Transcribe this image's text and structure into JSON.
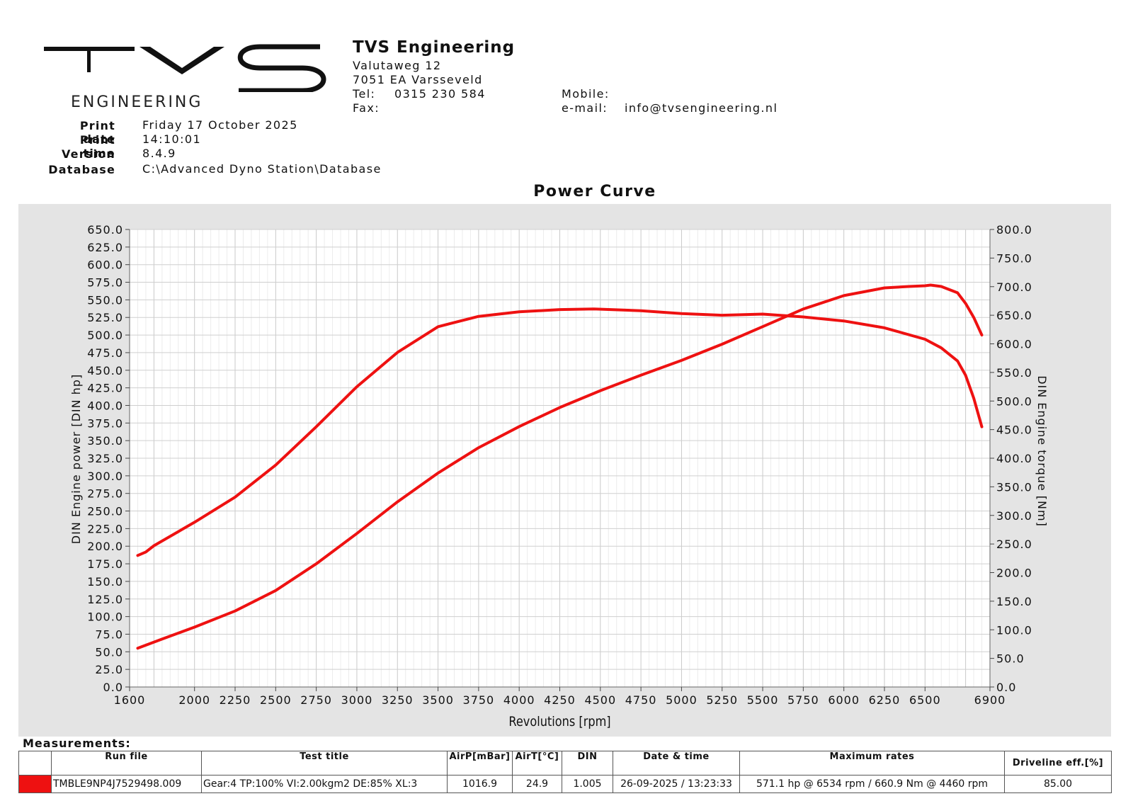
{
  "header": {
    "logo_text": "TVS",
    "logo_subtitle": "ENGINEERING",
    "company": {
      "name": "TVS Engineering",
      "street": "Valutaweg 12",
      "city": "7051 EA Varsseveld",
      "tel_label": "Tel:",
      "tel_value": "0315 230 584",
      "fax_label": "Fax:",
      "fax_value": "",
      "mobile_label": "Mobile:",
      "mobile_value": "",
      "email_label": "e-mail:",
      "email_value": "info@tvsengineering.nl"
    },
    "meta": [
      {
        "label": "Print date",
        "value": "Friday 17 October 2025"
      },
      {
        "label": "Print time",
        "value": "14:10:01"
      },
      {
        "label": "Version",
        "value": "8.4.9"
      },
      {
        "label": "Database",
        "value": "C:\\Advanced Dyno Station\\Database"
      }
    ]
  },
  "chart_data": {
    "type": "line",
    "title": "Power Curve",
    "xlabel": "Revolutions [rpm]",
    "ylabel": "DIN Engine power [DIN hp]",
    "y2label": "DIN Engine torque [Nm]",
    "xlim": [
      1600,
      6900
    ],
    "ylim": [
      0,
      650
    ],
    "y2lim": [
      0,
      800
    ],
    "x_ticks": [
      "1600",
      "2000",
      "2250",
      "2500",
      "2750",
      "3000",
      "3250",
      "3500",
      "3750",
      "4000",
      "4250",
      "4500",
      "4750",
      "5000",
      "5250",
      "5500",
      "5750",
      "6000",
      "6250",
      "6500",
      "6900"
    ],
    "y_ticks": [
      "0.0",
      "25.0",
      "50.0",
      "75.0",
      "100.0",
      "125.0",
      "150.0",
      "175.0",
      "200.0",
      "225.0",
      "250.0",
      "275.0",
      "300.0",
      "325.0",
      "350.0",
      "375.0",
      "400.0",
      "425.0",
      "450.0",
      "475.0",
      "500.0",
      "525.0",
      "550.0",
      "575.0",
      "600.0",
      "625.0",
      "650.0"
    ],
    "y2_ticks": [
      "0.0",
      "50.0",
      "100.0",
      "150.0",
      "200.0",
      "250.0",
      "300.0",
      "350.0",
      "400.0",
      "450.0",
      "500.0",
      "550.0",
      "600.0",
      "650.0",
      "700.0",
      "750.0",
      "800.0"
    ],
    "grid": true,
    "color": "#ee1111",
    "series": [
      {
        "axis": "left",
        "x": [
          1650,
          1800,
          2000,
          2250,
          2500,
          2750,
          3000,
          3250,
          3500,
          3750,
          4000,
          4250,
          4500,
          4750,
          5000,
          5250,
          5500,
          5750,
          6000,
          6250,
          6400,
          6500,
          6534,
          6600,
          6700,
          6750,
          6800,
          6850
        ],
        "values": [
          55,
          68,
          85,
          108,
          137,
          175,
          218,
          263,
          304,
          340,
          370,
          397,
          421,
          443,
          464,
          487,
          512,
          537,
          556,
          567,
          569,
          570,
          571,
          569,
          560,
          545,
          525,
          500
        ]
      },
      {
        "axis": "right",
        "x": [
          1650,
          1700,
          1750,
          2000,
          2250,
          2500,
          2750,
          3000,
          3250,
          3500,
          3750,
          4000,
          4250,
          4460,
          4750,
          5000,
          5250,
          5500,
          5750,
          6000,
          6250,
          6500,
          6600,
          6700,
          6750,
          6800,
          6850
        ],
        "values": [
          230,
          236,
          247,
          288,
          332,
          388,
          455,
          525,
          585,
          630,
          648,
          656,
          660,
          660.9,
          658,
          653,
          650,
          652,
          647,
          640,
          628,
          608,
          593,
          570,
          545,
          505,
          455
        ]
      }
    ]
  },
  "measurements": {
    "label": "Measurements:",
    "columns": [
      "",
      "Run file",
      "Test title",
      "AirP[mBar]",
      "AirT[°C]",
      "DIN",
      "Date & time",
      "Maximum rates",
      "Driveline eff.[%]"
    ],
    "rows": [
      {
        "color": "#ee1111",
        "run_file": "TMBLE9NP4J7529498.009",
        "test_title": "Gear:4 TP:100% VI:2.00kgm2 DE:85% XL:3",
        "airp": "1016.9",
        "airt": "24.9",
        "din": "1.005",
        "date_time": "26-09-2025 / 13:23:33",
        "max_rates": "571.1 hp @ 6534 rpm / 660.9 Nm @ 4460 rpm",
        "driveline_eff": "85.00"
      }
    ]
  }
}
